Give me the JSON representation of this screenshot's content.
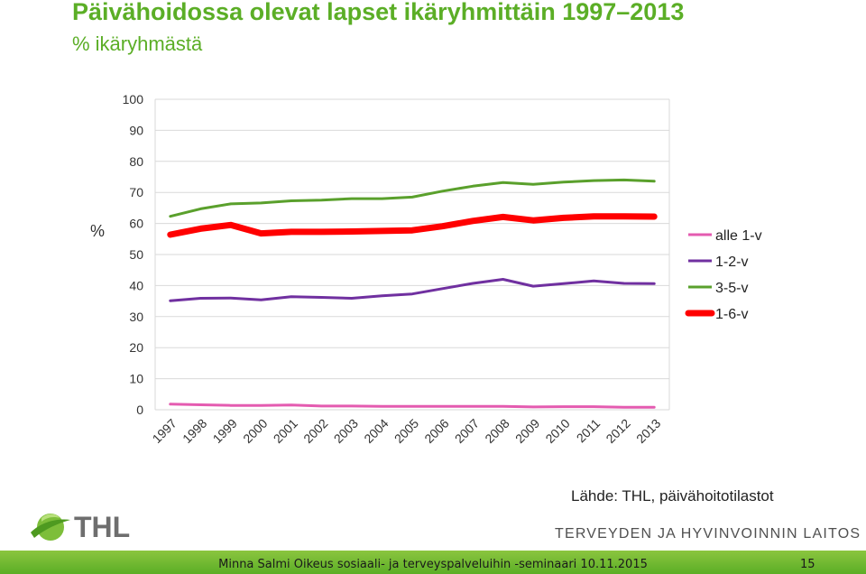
{
  "header": {
    "title": "Päivähoidossa olevat lapset ikäryhmittäin 1997–2013",
    "subtitle": "% ikäryhmästä"
  },
  "chart_data": {
    "type": "line",
    "x": [
      "1997",
      "1998",
      "1999",
      "2000",
      "2001",
      "2002",
      "2003",
      "2004",
      "2005",
      "2006",
      "2007",
      "2008",
      "2009",
      "2010",
      "2011",
      "2012",
      "2013"
    ],
    "ylabel": "%",
    "ylim": [
      0,
      100
    ],
    "yticks": [
      0,
      10,
      20,
      30,
      40,
      50,
      60,
      70,
      80,
      90,
      100
    ],
    "grid": true,
    "legend": "right",
    "series": [
      {
        "name": "alle 1-v",
        "color": "#E45BB0",
        "width": 3,
        "values": [
          1.8,
          1.6,
          1.4,
          1.4,
          1.5,
          1.2,
          1.2,
          1.1,
          1.1,
          1.1,
          1.1,
          1.1,
          0.9,
          1.0,
          1.0,
          0.8,
          0.8
        ]
      },
      {
        "name": "1-2-v",
        "color": "#7030A0",
        "width": 3,
        "values": [
          35.1,
          35.9,
          36.0,
          35.4,
          36.4,
          36.2,
          35.9,
          36.7,
          37.3,
          39.0,
          40.7,
          42.0,
          39.8,
          40.6,
          41.5,
          40.7,
          40.6
        ]
      },
      {
        "name": "3-5-v",
        "color": "#5AA02C",
        "width": 3,
        "values": [
          62.3,
          64.7,
          66.3,
          66.6,
          67.3,
          67.5,
          68.0,
          68.0,
          68.5,
          70.4,
          72.0,
          73.2,
          72.6,
          73.3,
          73.8,
          74.0,
          73.6
        ]
      },
      {
        "name": "1-6-v",
        "color": "#FF0000",
        "width": 7,
        "values": [
          56.4,
          58.3,
          59.5,
          56.8,
          57.3,
          57.3,
          57.4,
          57.6,
          57.8,
          59.1,
          60.8,
          62.1,
          61.0,
          61.8,
          62.3,
          62.3,
          62.2
        ]
      }
    ]
  },
  "source": "Lähde: THL, päivähoitotilastot",
  "logo": {
    "text": "THL"
  },
  "organization": "TERVEYDEN JA HYVINVOINNIN LAITOS",
  "footer": {
    "text": "Minna Salmi  Oikeus sosiaali- ja terveyspalveluihin -seminaari 10.11.2015",
    "page": "15"
  }
}
